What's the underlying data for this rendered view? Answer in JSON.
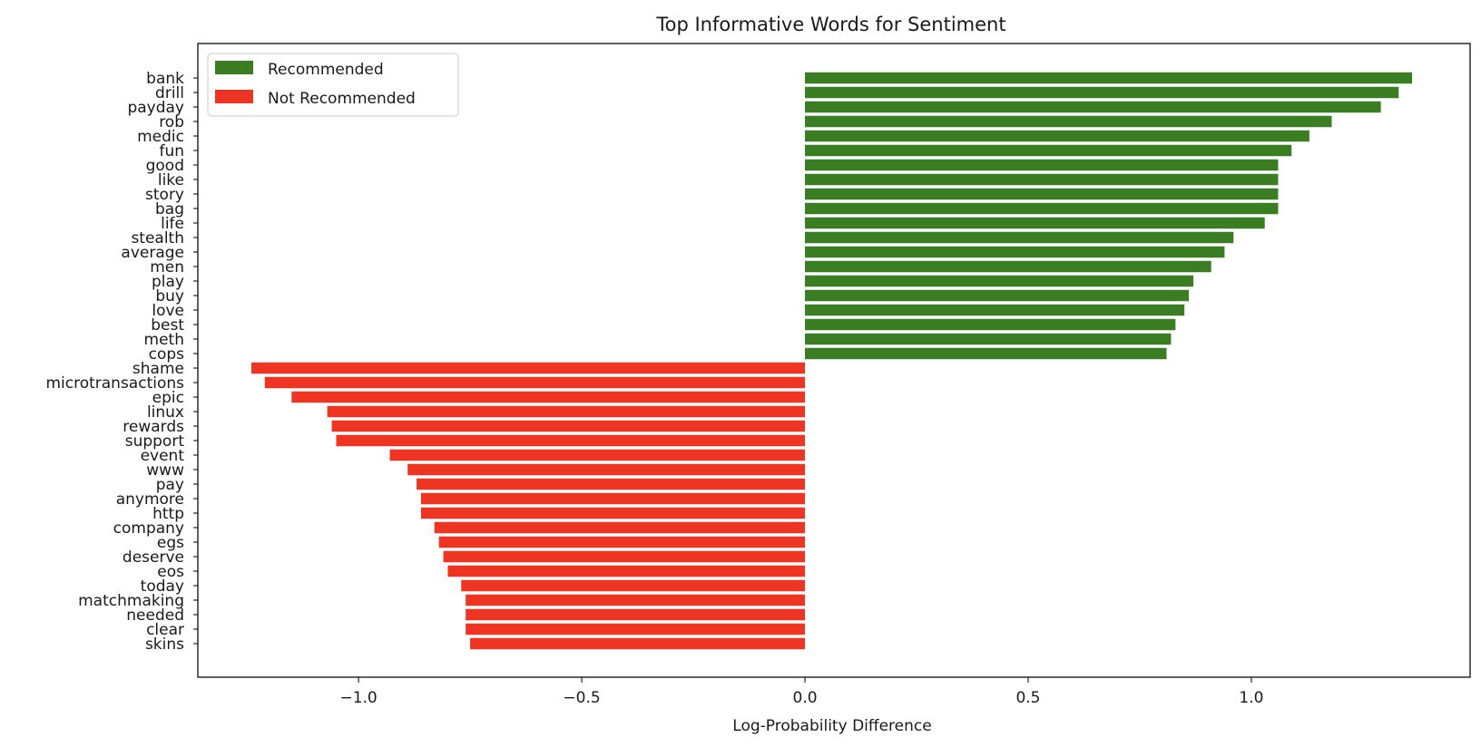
{
  "chart_data": {
    "type": "bar",
    "orientation": "horizontal",
    "title": "Top Informative Words for Sentiment",
    "xlabel": "Log-Probability Difference",
    "ylabel": "",
    "xlim": [
      -1.36,
      1.49
    ],
    "xticks": [
      -1.0,
      -0.5,
      0.0,
      0.5,
      1.0
    ],
    "xtick_labels": [
      "−1.0",
      "−0.5",
      "0.0",
      "0.5",
      "1.0"
    ],
    "grid": false,
    "legend_position": "top-left",
    "series": [
      {
        "name": "Recommended",
        "color": "#3a7d22",
        "categories": [
          "bank",
          "drill",
          "payday",
          "rob",
          "medic",
          "fun",
          "good",
          "like",
          "story",
          "bag",
          "life",
          "stealth",
          "average",
          "men",
          "play",
          "buy",
          "love",
          "best",
          "meth",
          "cops"
        ],
        "values": [
          1.36,
          1.33,
          1.29,
          1.18,
          1.13,
          1.09,
          1.06,
          1.06,
          1.06,
          1.06,
          1.03,
          0.96,
          0.94,
          0.91,
          0.87,
          0.86,
          0.85,
          0.83,
          0.82,
          0.81
        ]
      },
      {
        "name": "Not Recommended",
        "color": "#ee3524",
        "categories": [
          "shame",
          "microtransactions",
          "epic",
          "linux",
          "rewards",
          "support",
          "event",
          "www",
          "pay",
          "anymore",
          "http",
          "company",
          "egs",
          "deserve",
          "eos",
          "today",
          "matchmaking",
          "needed",
          "clear",
          "skins"
        ],
        "values": [
          -1.24,
          -1.21,
          -1.15,
          -1.07,
          -1.06,
          -1.05,
          -0.93,
          -0.89,
          -0.87,
          -0.86,
          -0.86,
          -0.83,
          -0.82,
          -0.81,
          -0.8,
          -0.77,
          -0.76,
          -0.76,
          -0.76,
          -0.75
        ]
      }
    ]
  }
}
